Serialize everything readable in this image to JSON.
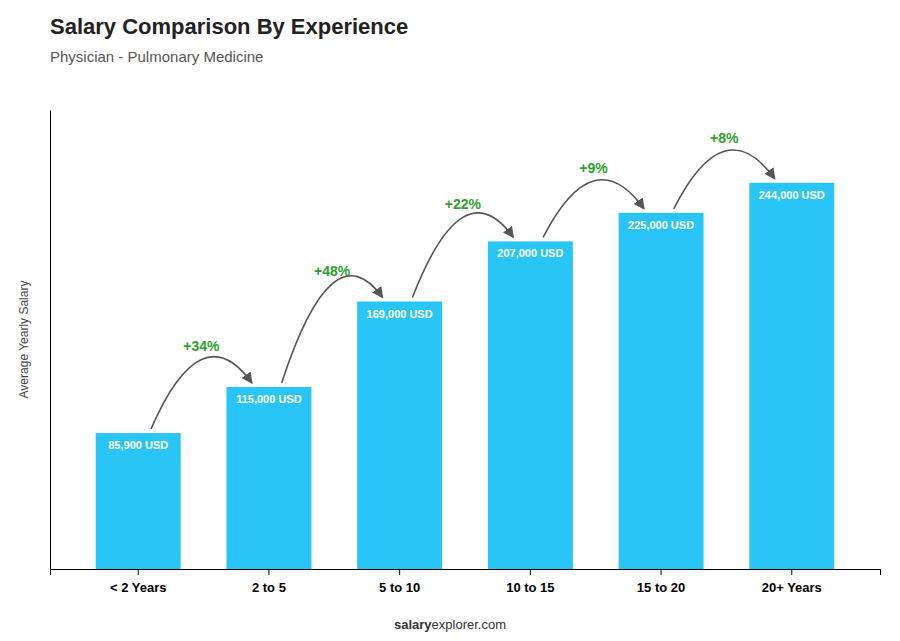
{
  "chart_data": {
    "type": "bar",
    "title": "Salary Comparison By Experience",
    "subtitle": "Physician - Pulmonary Medicine",
    "ylabel": "Average Yearly Salary",
    "categories": [
      "< 2 Years",
      "2 to 5",
      "5 to 10",
      "10 to 15",
      "15 to 20",
      "20+ Years"
    ],
    "values": [
      85900,
      115000,
      169000,
      207000,
      225000,
      244000
    ],
    "value_labels": [
      "85,900 USD",
      "115,000 USD",
      "169,000 USD",
      "207,000 USD",
      "225,000 USD",
      "244,000 USD"
    ],
    "data_labels": true,
    "color": "#29C5F6",
    "ylim": [
      0,
      290000
    ],
    "yticks": [],
    "tick_labels": "x",
    "grid": false,
    "annotations": [
      "+34%",
      "+48%",
      "+22%",
      "+9%",
      "+8%"
    ],
    "footer": [
      "salary",
      "explorer.com"
    ]
  }
}
